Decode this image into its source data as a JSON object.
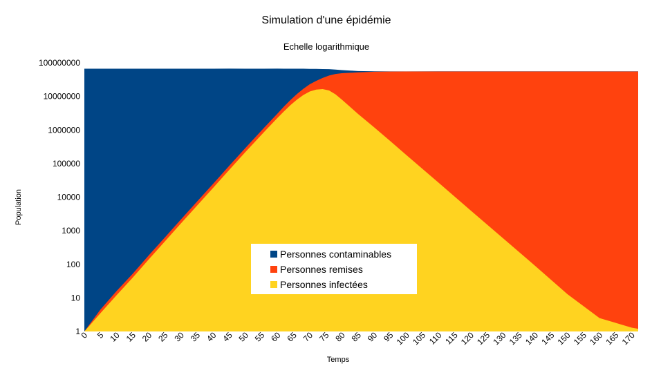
{
  "chart_data": {
    "type": "area",
    "stacked": true,
    "title": "Simulation d'une épidémie",
    "subtitle": "Echelle logarithmique",
    "xlabel": "Temps",
    "ylabel": "Population",
    "yscale": "log",
    "ylim": [
      1,
      100000000
    ],
    "xlim": [
      0,
      172
    ],
    "y_ticks": [
      "1",
      "10",
      "100",
      "1000",
      "10000",
      "100000",
      "1000000",
      "10000000",
      "100000000"
    ],
    "x_ticks": [
      "0",
      "5",
      "10",
      "15",
      "20",
      "25",
      "30",
      "35",
      "40",
      "45",
      "50",
      "55",
      "60",
      "65",
      "70",
      "75",
      "80",
      "85",
      "90",
      "95",
      "100",
      "105",
      "110",
      "115",
      "120",
      "125",
      "130",
      "135",
      "140",
      "145",
      "150",
      "155",
      "160",
      "165",
      "170"
    ],
    "legend_position": "center",
    "x": [
      0,
      5,
      10,
      15,
      20,
      25,
      30,
      35,
      40,
      45,
      50,
      55,
      60,
      62,
      64,
      66,
      68,
      70,
      72,
      74,
      76,
      78,
      80,
      85,
      90,
      95,
      100,
      110,
      120,
      130,
      140,
      150,
      160,
      170,
      172
    ],
    "series": [
      {
        "name": "Personnes infectées",
        "color": "#ffd320",
        "values": [
          1,
          3.5,
          12,
          40,
          140,
          480,
          1650,
          5600,
          19000,
          65000,
          220000,
          720000,
          2300000,
          3600000,
          5500000,
          8000000,
          11000000,
          14000000,
          16000000,
          16500000,
          15000000,
          11500000,
          8000000,
          3000000,
          1200000,
          470000,
          180000,
          27000,
          4000,
          600,
          90,
          13,
          2.5,
          1.3,
          1.2
        ]
      },
      {
        "name": "Personnes remises",
        "color": "#ff420e",
        "values": [
          0,
          1,
          4,
          12,
          45,
          150,
          520,
          1800,
          6000,
          21000,
          70000,
          240000,
          800000,
          1400000,
          2300000,
          3700000,
          5800000,
          9000000,
          13000000,
          19000000,
          27000000,
          35000000,
          41000000,
          49000000,
          53000000,
          54500000,
          55000000,
          55200000,
          55300000,
          55300000,
          55300000,
          55300000,
          55300000,
          55300000,
          55300000
        ]
      },
      {
        "name": "Personnes contaminables",
        "color": "#004586",
        "values": [
          67000000,
          67000000,
          67000000,
          67000000,
          67000000,
          67000000,
          67000000,
          67000000,
          67000000,
          67000000,
          66700000,
          66000000,
          64000000,
          62000000,
          59000000,
          55000000,
          50000000,
          43000000,
          37000000,
          30000000,
          23000000,
          16500000,
          11700000,
          5000000,
          1800000,
          700000,
          600000,
          600000,
          600000,
          600000,
          600000,
          600000,
          600000,
          600000,
          600000
        ]
      }
    ],
    "legend_order": [
      "Personnes contaminables",
      "Personnes remises",
      "Personnes infectées"
    ]
  }
}
